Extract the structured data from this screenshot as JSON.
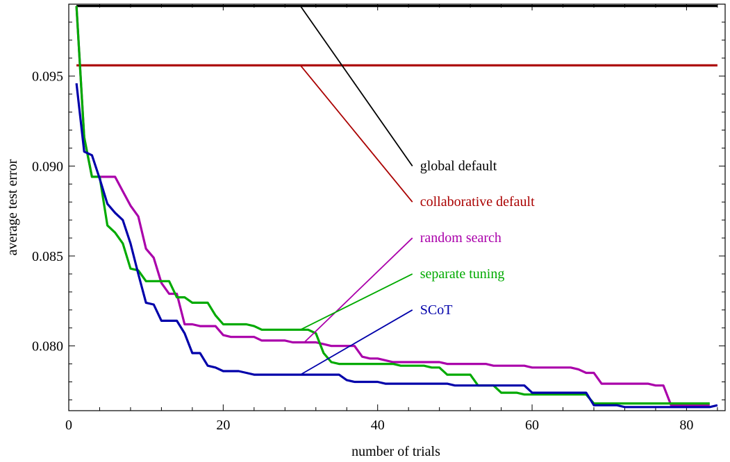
{
  "chart_data": {
    "type": "line",
    "title": "",
    "xlabel": "number of trials",
    "ylabel": "average test error",
    "xlim": [
      0,
      85
    ],
    "ylim": [
      0.0764,
      0.099
    ],
    "xticks": [
      0,
      20,
      40,
      60,
      80
    ],
    "yticks": [
      0.08,
      0.085,
      0.09,
      0.095
    ],
    "xtick_labels": [
      "0",
      "20",
      "40",
      "60",
      "80"
    ],
    "ytick_labels": [
      "0.080",
      "0.085",
      "0.090",
      "0.095"
    ],
    "grid": false,
    "legend": "direct labels with leader lines",
    "series": [
      {
        "name": "global default",
        "color": "#000000",
        "x": [
          1,
          84
        ],
        "y": [
          0.0989,
          0.0989
        ],
        "label_anchor": {
          "x": 30,
          "y": 0.0989
        },
        "label_pos": {
          "x": 44.5,
          "y": 0.09
        }
      },
      {
        "name": "collaborative default",
        "color": "#aa0000",
        "x": [
          1,
          84
        ],
        "y": [
          0.0956,
          0.0956
        ],
        "label_anchor": {
          "x": 30,
          "y": 0.0956
        },
        "label_pos": {
          "x": 44.5,
          "y": 0.088
        }
      },
      {
        "name": "random search",
        "color": "#aa00aa",
        "x": [
          1,
          2,
          3,
          4,
          5,
          6,
          7,
          8,
          9,
          10,
          11,
          12,
          13,
          14,
          15,
          16,
          17,
          18,
          19,
          20,
          21,
          22,
          23,
          24,
          25,
          26,
          27,
          28,
          29,
          30,
          31,
          32,
          33,
          34,
          35,
          36,
          37,
          38,
          39,
          40,
          41,
          42,
          43,
          44,
          45,
          46,
          47,
          48,
          49,
          50,
          51,
          52,
          53,
          54,
          55,
          56,
          57,
          58,
          59,
          60,
          61,
          62,
          63,
          64,
          65,
          66,
          67,
          68,
          69,
          70,
          71,
          72,
          73,
          74,
          75,
          76,
          77,
          78,
          79,
          80,
          81,
          82,
          83
        ],
        "y": [
          0.0989,
          0.0916,
          0.0894,
          0.0894,
          0.0894,
          0.0894,
          0.0886,
          0.0878,
          0.0872,
          0.0854,
          0.0849,
          0.0835,
          0.0829,
          0.0829,
          0.0812,
          0.0812,
          0.0811,
          0.0811,
          0.0811,
          0.0806,
          0.0805,
          0.0805,
          0.0805,
          0.0805,
          0.0803,
          0.0803,
          0.0803,
          0.0803,
          0.0802,
          0.0802,
          0.0802,
          0.0802,
          0.0801,
          0.08,
          0.08,
          0.08,
          0.08,
          0.0794,
          0.0793,
          0.0793,
          0.0792,
          0.0791,
          0.0791,
          0.0791,
          0.0791,
          0.0791,
          0.0791,
          0.0791,
          0.079,
          0.079,
          0.079,
          0.079,
          0.079,
          0.079,
          0.0789,
          0.0789,
          0.0789,
          0.0789,
          0.0789,
          0.0788,
          0.0788,
          0.0788,
          0.0788,
          0.0788,
          0.0788,
          0.0787,
          0.0785,
          0.0785,
          0.0779,
          0.0779,
          0.0779,
          0.0779,
          0.0779,
          0.0779,
          0.0779,
          0.0778,
          0.0778,
          0.0767,
          0.0767,
          0.0767,
          0.0767,
          0.0767,
          0.0767
        ],
        "label_anchor": {
          "x": 30.5,
          "y": 0.0802
        },
        "label_pos": {
          "x": 44.5,
          "y": 0.086
        }
      },
      {
        "name": "separate tuning",
        "color": "#00aa00",
        "x": [
          1,
          2,
          3,
          4,
          5,
          6,
          7,
          8,
          9,
          10,
          11,
          12,
          13,
          14,
          15,
          16,
          17,
          18,
          19,
          20,
          21,
          22,
          23,
          24,
          25,
          26,
          27,
          28,
          29,
          30,
          31,
          32,
          33,
          34,
          35,
          36,
          37,
          38,
          39,
          40,
          41,
          42,
          43,
          44,
          45,
          46,
          47,
          48,
          49,
          50,
          51,
          52,
          53,
          54,
          55,
          56,
          57,
          58,
          59,
          60,
          61,
          62,
          63,
          64,
          65,
          66,
          67,
          68,
          69,
          70,
          71,
          72,
          73,
          74,
          75,
          76,
          77,
          78,
          79,
          80,
          81,
          82,
          83
        ],
        "y": [
          0.0989,
          0.0916,
          0.0894,
          0.0894,
          0.0867,
          0.0863,
          0.0857,
          0.0843,
          0.0842,
          0.0836,
          0.0836,
          0.0836,
          0.0836,
          0.0827,
          0.0827,
          0.0824,
          0.0824,
          0.0824,
          0.0817,
          0.0812,
          0.0812,
          0.0812,
          0.0812,
          0.0811,
          0.0809,
          0.0809,
          0.0809,
          0.0809,
          0.0809,
          0.0809,
          0.0809,
          0.0807,
          0.0796,
          0.0791,
          0.079,
          0.079,
          0.079,
          0.079,
          0.079,
          0.079,
          0.079,
          0.079,
          0.0789,
          0.0789,
          0.0789,
          0.0789,
          0.0788,
          0.0788,
          0.0784,
          0.0784,
          0.0784,
          0.0784,
          0.0778,
          0.0778,
          0.0778,
          0.0774,
          0.0774,
          0.0774,
          0.0773,
          0.0773,
          0.0773,
          0.0773,
          0.0773,
          0.0773,
          0.0773,
          0.0773,
          0.0773,
          0.0768,
          0.0768,
          0.0768,
          0.0768,
          0.0768,
          0.0768,
          0.0768,
          0.0768,
          0.0768,
          0.0768,
          0.0768,
          0.0768,
          0.0768,
          0.0768,
          0.0768,
          0.0768
        ],
        "label_anchor": {
          "x": 30,
          "y": 0.0809
        },
        "label_pos": {
          "x": 44.5,
          "y": 0.084
        }
      },
      {
        "name": "SCoT",
        "color": "#0000aa",
        "x": [
          1,
          2,
          3,
          4,
          5,
          6,
          7,
          8,
          9,
          10,
          11,
          12,
          13,
          14,
          15,
          16,
          17,
          18,
          19,
          20,
          21,
          22,
          23,
          24,
          25,
          26,
          27,
          28,
          29,
          30,
          31,
          32,
          33,
          34,
          35,
          36,
          37,
          38,
          39,
          40,
          41,
          42,
          43,
          44,
          45,
          46,
          47,
          48,
          49,
          50,
          51,
          52,
          53,
          54,
          55,
          56,
          57,
          58,
          59,
          60,
          61,
          62,
          63,
          64,
          65,
          66,
          67,
          68,
          69,
          70,
          71,
          72,
          73,
          74,
          75,
          76,
          77,
          78,
          79,
          80,
          81,
          82,
          83,
          84
        ],
        "y": [
          0.0946,
          0.0908,
          0.0906,
          0.0893,
          0.0879,
          0.0874,
          0.087,
          0.0857,
          0.084,
          0.0824,
          0.0823,
          0.0814,
          0.0814,
          0.0814,
          0.0807,
          0.0796,
          0.0796,
          0.0789,
          0.0788,
          0.0786,
          0.0786,
          0.0786,
          0.0785,
          0.0784,
          0.0784,
          0.0784,
          0.0784,
          0.0784,
          0.0784,
          0.0784,
          0.0784,
          0.0784,
          0.0784,
          0.0784,
          0.0784,
          0.0781,
          0.078,
          0.078,
          0.078,
          0.078,
          0.0779,
          0.0779,
          0.0779,
          0.0779,
          0.0779,
          0.0779,
          0.0779,
          0.0779,
          0.0779,
          0.0778,
          0.0778,
          0.0778,
          0.0778,
          0.0778,
          0.0778,
          0.0778,
          0.0778,
          0.0778,
          0.0778,
          0.0774,
          0.0774,
          0.0774,
          0.0774,
          0.0774,
          0.0774,
          0.0774,
          0.0774,
          0.0767,
          0.0767,
          0.0767,
          0.0767,
          0.0766,
          0.0766,
          0.0766,
          0.0766,
          0.0766,
          0.0766,
          0.0766,
          0.0766,
          0.0766,
          0.0766,
          0.0766,
          0.0766,
          0.0767
        ],
        "label_anchor": {
          "x": 30,
          "y": 0.0784
        },
        "label_pos": {
          "x": 44.5,
          "y": 0.082
        }
      }
    ]
  }
}
